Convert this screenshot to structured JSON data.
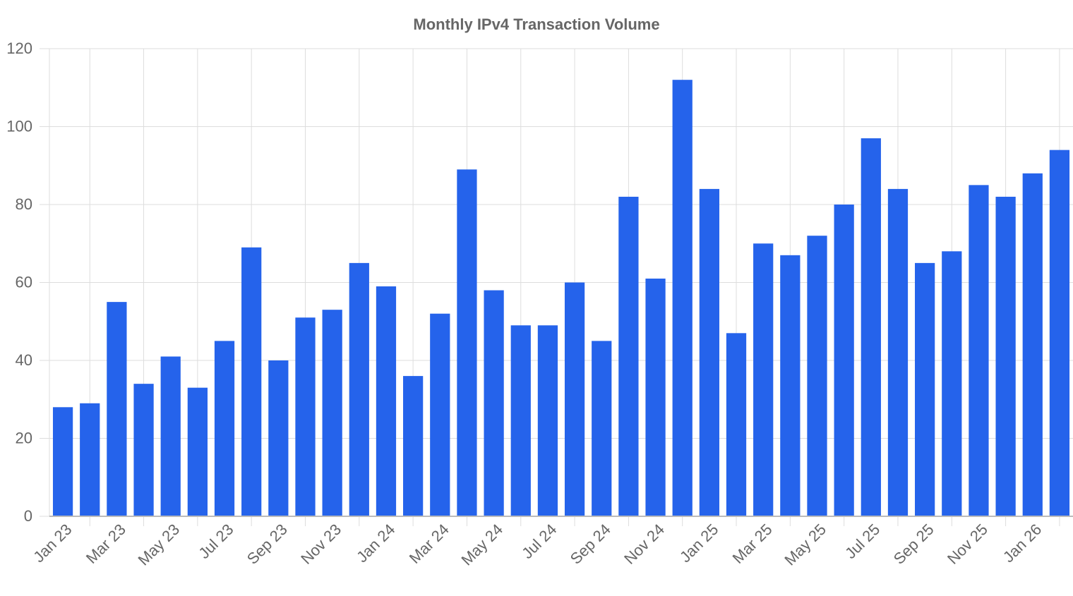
{
  "chart_data": {
    "type": "bar",
    "title": "Monthly IPv4 Transaction Volume",
    "categories": [
      "Jan 23",
      null,
      "Mar 23",
      null,
      "May 23",
      null,
      "Jul 23",
      null,
      "Sep 23",
      null,
      "Nov 23",
      null,
      "Jan 24",
      null,
      "Mar 24",
      null,
      "May 24",
      null,
      "Jul 24",
      null,
      "Sep 24",
      null,
      "Nov 24",
      null,
      "Jan 25",
      null,
      "Mar 25",
      null,
      "May 25",
      null,
      "Jul 25",
      null,
      "Sep 25",
      null,
      "Nov 25",
      null,
      "Jan 26",
      null
    ],
    "values": [
      28,
      29,
      55,
      34,
      41,
      33,
      45,
      69,
      40,
      51,
      53,
      65,
      59,
      36,
      52,
      89,
      58,
      49,
      49,
      60,
      45,
      82,
      61,
      112,
      84,
      47,
      70,
      67,
      72,
      80,
      97,
      84,
      65,
      68,
      85,
      82,
      88,
      94
    ],
    "color": "#2563eb",
    "ylim": [
      0,
      120
    ],
    "yticks": [
      0,
      20,
      40,
      60,
      80,
      100,
      120
    ],
    "grid": true
  }
}
